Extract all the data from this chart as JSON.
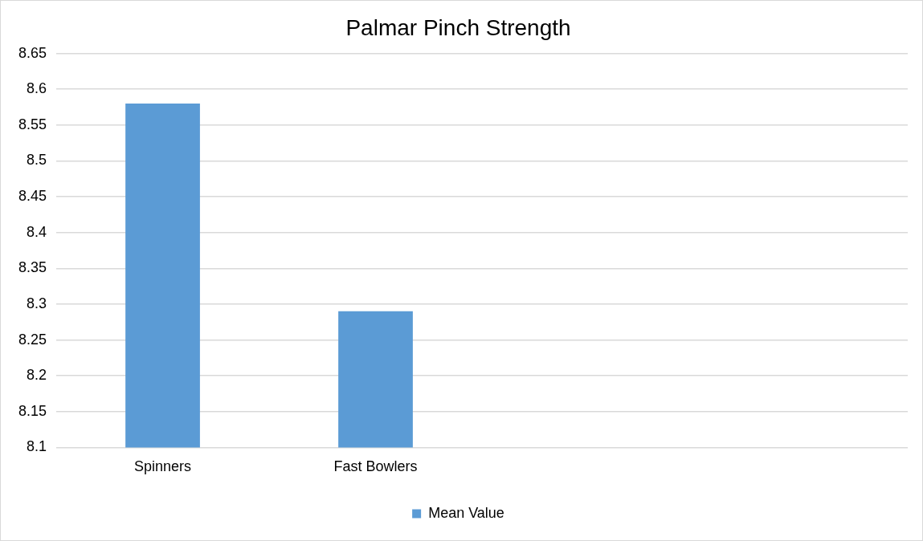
{
  "chart_data": {
    "type": "bar",
    "title": "Palmar Pinch Strength",
    "categories": [
      "Spinners",
      "Fast Bowlers",
      null,
      null
    ],
    "series": [
      {
        "name": "Mean Value",
        "color": "#5b9bd5",
        "values": [
          8.58,
          8.29,
          null,
          null
        ]
      }
    ],
    "ylim": [
      8.1,
      8.65
    ],
    "yticks": [
      8.1,
      8.15,
      8.2,
      8.25,
      8.3,
      8.35,
      8.4,
      8.45,
      8.5,
      8.55,
      8.6,
      8.65
    ],
    "grid": "y",
    "legend": "bottom"
  }
}
